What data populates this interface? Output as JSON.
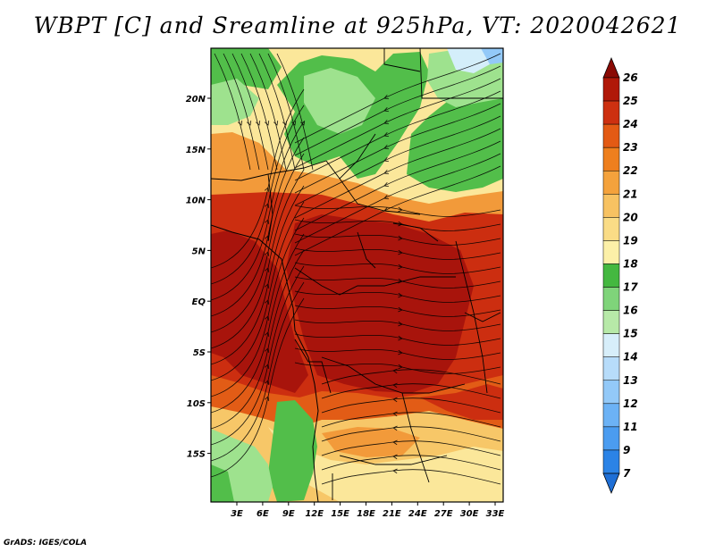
{
  "title": "WBPT [C] and Sreamline at 925hPa, VT: 2020042621",
  "credit": "GrADS: IGES/COLA",
  "map": {
    "lat_ticks": [
      "20N",
      "15N",
      "10N",
      "5N",
      "EQ",
      "5S",
      "10S",
      "15S"
    ],
    "lon_ticks": [
      "3E",
      "6E",
      "9E",
      "12E",
      "15E",
      "18E",
      "21E",
      "24E",
      "27E",
      "30E",
      "33E"
    ]
  },
  "colorbar": {
    "labels": [
      "7",
      "9",
      "11",
      "12",
      "13",
      "14",
      "15",
      "16",
      "17",
      "18",
      "19",
      "20",
      "21",
      "22",
      "23",
      "24",
      "25",
      "26"
    ],
    "colors": [
      "#1e6fd6",
      "#2b83e6",
      "#4b9cf0",
      "#6cb2f5",
      "#93c9f8",
      "#b7dcfa",
      "#d7eefa",
      "#b7e9a8",
      "#7fd47a",
      "#44b840",
      "#fcf0a8",
      "#fadc86",
      "#f7c262",
      "#f4a23c",
      "#ee7f1e",
      "#e35a14",
      "#cd3010",
      "#b01808",
      "#8a0a04"
    ]
  },
  "colors": {
    "deep_red": "#a8140c",
    "red": "#cc2e10",
    "orange_red": "#e25c16",
    "orange": "#f29a3a",
    "light_orange": "#f7c768",
    "yellow": "#fbe79a",
    "light_green": "#9ee28e",
    "green": "#52be4a",
    "pale_blue": "#d4eefa"
  }
}
